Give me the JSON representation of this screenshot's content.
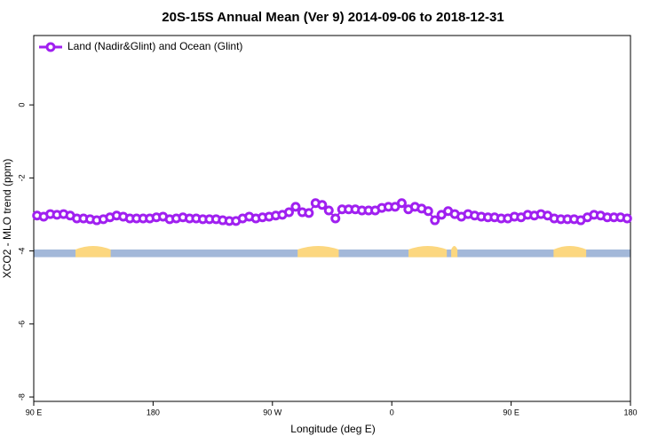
{
  "chart_data": {
    "type": "line",
    "title": "20S-15S Annual Mean (Ver 9)   2014-09-06 to 2018-12-31",
    "x_label": "Longitude (deg E)",
    "y_label": "XCO2 - MLO trend (ppm)",
    "xlim": [
      90,
      540
    ],
    "ylim": [
      -8.12,
      1.9
    ],
    "xticks": [
      {
        "value": 90,
        "label": "90 E"
      },
      180,
      {
        "value": 270,
        "label": "90 W"
      },
      {
        "value": 360,
        "label": "0"
      },
      {
        "value": 450,
        "label": "90 E"
      },
      {
        "value": 540,
        "label": "180"
      }
    ],
    "yticks": [
      0,
      -2,
      -4,
      -6,
      -8
    ],
    "legend": "upper left",
    "x": [
      92.5,
      97.5,
      102.5,
      107.5,
      112.5,
      117.5,
      122.5,
      127.5,
      132.5,
      137.5,
      142.5,
      147.5,
      152.5,
      157.5,
      162.5,
      167.5,
      172.5,
      177.5,
      182.5,
      187.5,
      192.5,
      197.5,
      202.5,
      207.5,
      212.5,
      217.5,
      222.5,
      227.5,
      232.5,
      237.5,
      242.5,
      247.5,
      252.5,
      257.5,
      262.5,
      267.5,
      272.5,
      277.5,
      282.5,
      287.5,
      292.5,
      297.5,
      302.5,
      307.5,
      312.5,
      317.5,
      322.5,
      327.5,
      332.5,
      337.5,
      342.5,
      347.5,
      352.5,
      357.5,
      362.5,
      367.5,
      372.5,
      377.5,
      382.5,
      387.5,
      392.5,
      397.5,
      402.5,
      407.5,
      412.5,
      417.5,
      422.5,
      427.5,
      432.5,
      437.5,
      442.5,
      447.5,
      452.5,
      457.5,
      462.5,
      467.5,
      472.5,
      477.5,
      482.5,
      487.5,
      492.5,
      497.5,
      502.5,
      507.5,
      512.5,
      517.5,
      522.5,
      527.5,
      532.5,
      537.5
    ],
    "series": [
      {
        "name": "Land (Nadir&Glint) and Ocean (Glint)",
        "color": "#a020f0",
        "values": [
          -3.03,
          -3.06,
          -2.99,
          -3.01,
          -2.99,
          -3.03,
          -3.11,
          -3.11,
          -3.13,
          -3.16,
          -3.13,
          -3.08,
          -3.03,
          -3.06,
          -3.11,
          -3.11,
          -3.11,
          -3.11,
          -3.08,
          -3.06,
          -3.13,
          -3.11,
          -3.08,
          -3.11,
          -3.11,
          -3.13,
          -3.13,
          -3.13,
          -3.16,
          -3.18,
          -3.18,
          -3.11,
          -3.06,
          -3.11,
          -3.08,
          -3.06,
          -3.03,
          -3.01,
          -2.94,
          -2.79,
          -2.94,
          -2.96,
          -2.69,
          -2.74,
          -2.89,
          -3.11,
          -2.86,
          -2.86,
          -2.86,
          -2.89,
          -2.89,
          -2.89,
          -2.82,
          -2.79,
          -2.79,
          -2.69,
          -2.86,
          -2.79,
          -2.84,
          -2.91,
          -3.16,
          -3.01,
          -2.91,
          -2.99,
          -3.06,
          -2.99,
          -3.03,
          -3.06,
          -3.08,
          -3.08,
          -3.11,
          -3.11,
          -3.06,
          -3.08,
          -3.01,
          -3.03,
          -2.99,
          -3.03,
          -3.11,
          -3.13,
          -3.13,
          -3.13,
          -3.16,
          -3.08,
          -3.01,
          -3.03,
          -3.08,
          -3.08,
          -3.08,
          -3.11
        ]
      }
    ],
    "surface_strip": {
      "range": [
        -4.17,
        -3.96
      ],
      "ocean_color": "#a3b8d9",
      "land_color": "#fcd77f",
      "land_spans": [
        [
          121.5,
          148
        ],
        [
          289,
          320
        ],
        [
          372.6,
          401.5
        ],
        [
          404.8,
          409.5
        ],
        [
          482,
          506.6
        ]
      ]
    }
  }
}
